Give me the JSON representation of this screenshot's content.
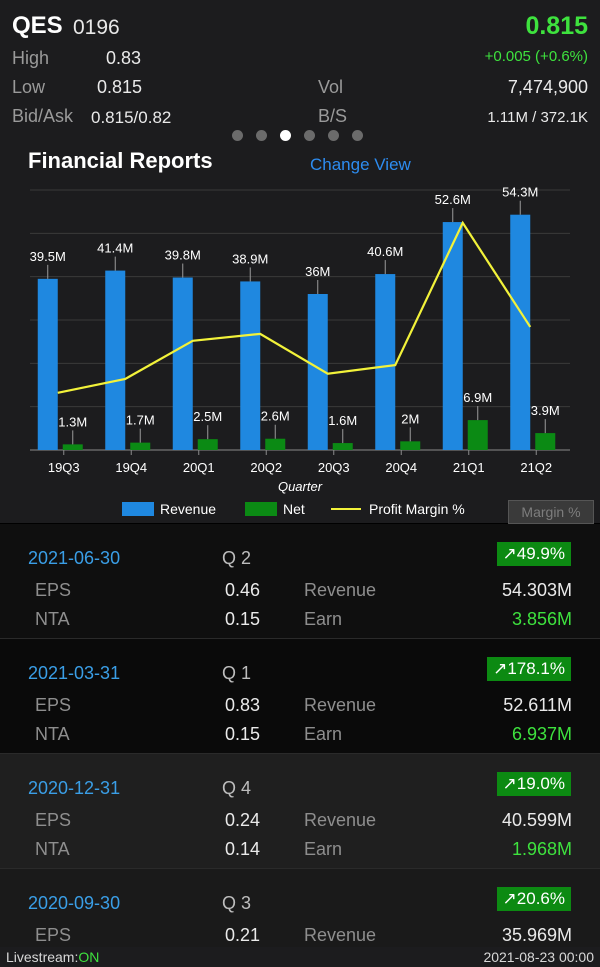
{
  "header": {
    "symbol": "QES",
    "code": "0196",
    "price": "0.815",
    "change": "+0.005 (+0.6%)",
    "high_label": "High",
    "high_value": "0.83",
    "low_label": "Low",
    "low_value": "0.815",
    "bidask_label": "Bid/Ask",
    "bidask_value": "0.815/0.82",
    "vol_label": "Vol",
    "vol_value": "7,474,900",
    "bs_label": "B/S",
    "bs_value": "1.11M / 372.1K",
    "page_dots": 6,
    "active_dot": 2
  },
  "card": {
    "title": "Financial Reports",
    "change_view": "Change View",
    "margin_button": "Margin %"
  },
  "chart_data": {
    "type": "bar",
    "categories": [
      "19Q3",
      "19Q4",
      "20Q1",
      "20Q2",
      "20Q3",
      "20Q4",
      "21Q1",
      "21Q2"
    ],
    "xlabel": "Quarter",
    "series": [
      {
        "name": "Revenue",
        "type": "bar",
        "color": "#1f88e0",
        "values": [
          39.5,
          41.4,
          39.8,
          38.9,
          36,
          40.6,
          52.6,
          54.3
        ],
        "labels": [
          "39.5M",
          "41.4M",
          "39.8M",
          "38.9M",
          "36M",
          "40.6M",
          "52.6M",
          "54.3M"
        ]
      },
      {
        "name": "Net",
        "type": "bar",
        "color": "#0b8a14",
        "values": [
          1.3,
          1.7,
          2.5,
          2.6,
          1.6,
          2.0,
          6.9,
          3.9
        ],
        "labels": [
          "1.3M",
          "1.7M",
          "2.5M",
          "2.6M",
          "1.6M",
          "2M",
          "6.9M",
          "3.9M"
        ]
      },
      {
        "name": "Profit Margin %",
        "type": "line",
        "color": "#f2f23a",
        "values": [
          3.3,
          4.1,
          6.3,
          6.7,
          4.4,
          4.9,
          13.1,
          7.1
        ]
      }
    ],
    "ylim": [
      0,
      60
    ],
    "legend_position": "bottom",
    "grid": true
  },
  "reports": [
    {
      "date": "2021-06-30",
      "q_label": "Q",
      "q": "2",
      "change": "↗49.9%",
      "eps_label": "EPS",
      "eps": "0.46",
      "nta_label": "NTA",
      "nta": "0.15",
      "rev_label": "Revenue",
      "revenue": "54.303M",
      "earn_label": "Earn",
      "earn": "3.856M"
    },
    {
      "date": "2021-03-31",
      "q_label": "Q",
      "q": "1",
      "change": "↗178.1%",
      "eps_label": "EPS",
      "eps": "0.83",
      "nta_label": "NTA",
      "nta": "0.15",
      "rev_label": "Revenue",
      "revenue": "52.611M",
      "earn_label": "Earn",
      "earn": "6.937M"
    },
    {
      "date": "2020-12-31",
      "q_label": "Q",
      "q": "4",
      "change": "↗19.0%",
      "eps_label": "EPS",
      "eps": "0.24",
      "nta_label": "NTA",
      "nta": "0.14",
      "rev_label": "Revenue",
      "revenue": "40.599M",
      "earn_label": "Earn",
      "earn": "1.968M"
    },
    {
      "date": "2020-09-30",
      "q_label": "Q",
      "q": "3",
      "change": "↗20.6%",
      "eps_label": "EPS",
      "eps": "0.21",
      "rev_label": "Revenue",
      "revenue": "35.969M"
    }
  ],
  "footer": {
    "livestream_label": "Livestream:",
    "livestream_state": "ON",
    "timestamp": "2021-08-23 00:00"
  }
}
